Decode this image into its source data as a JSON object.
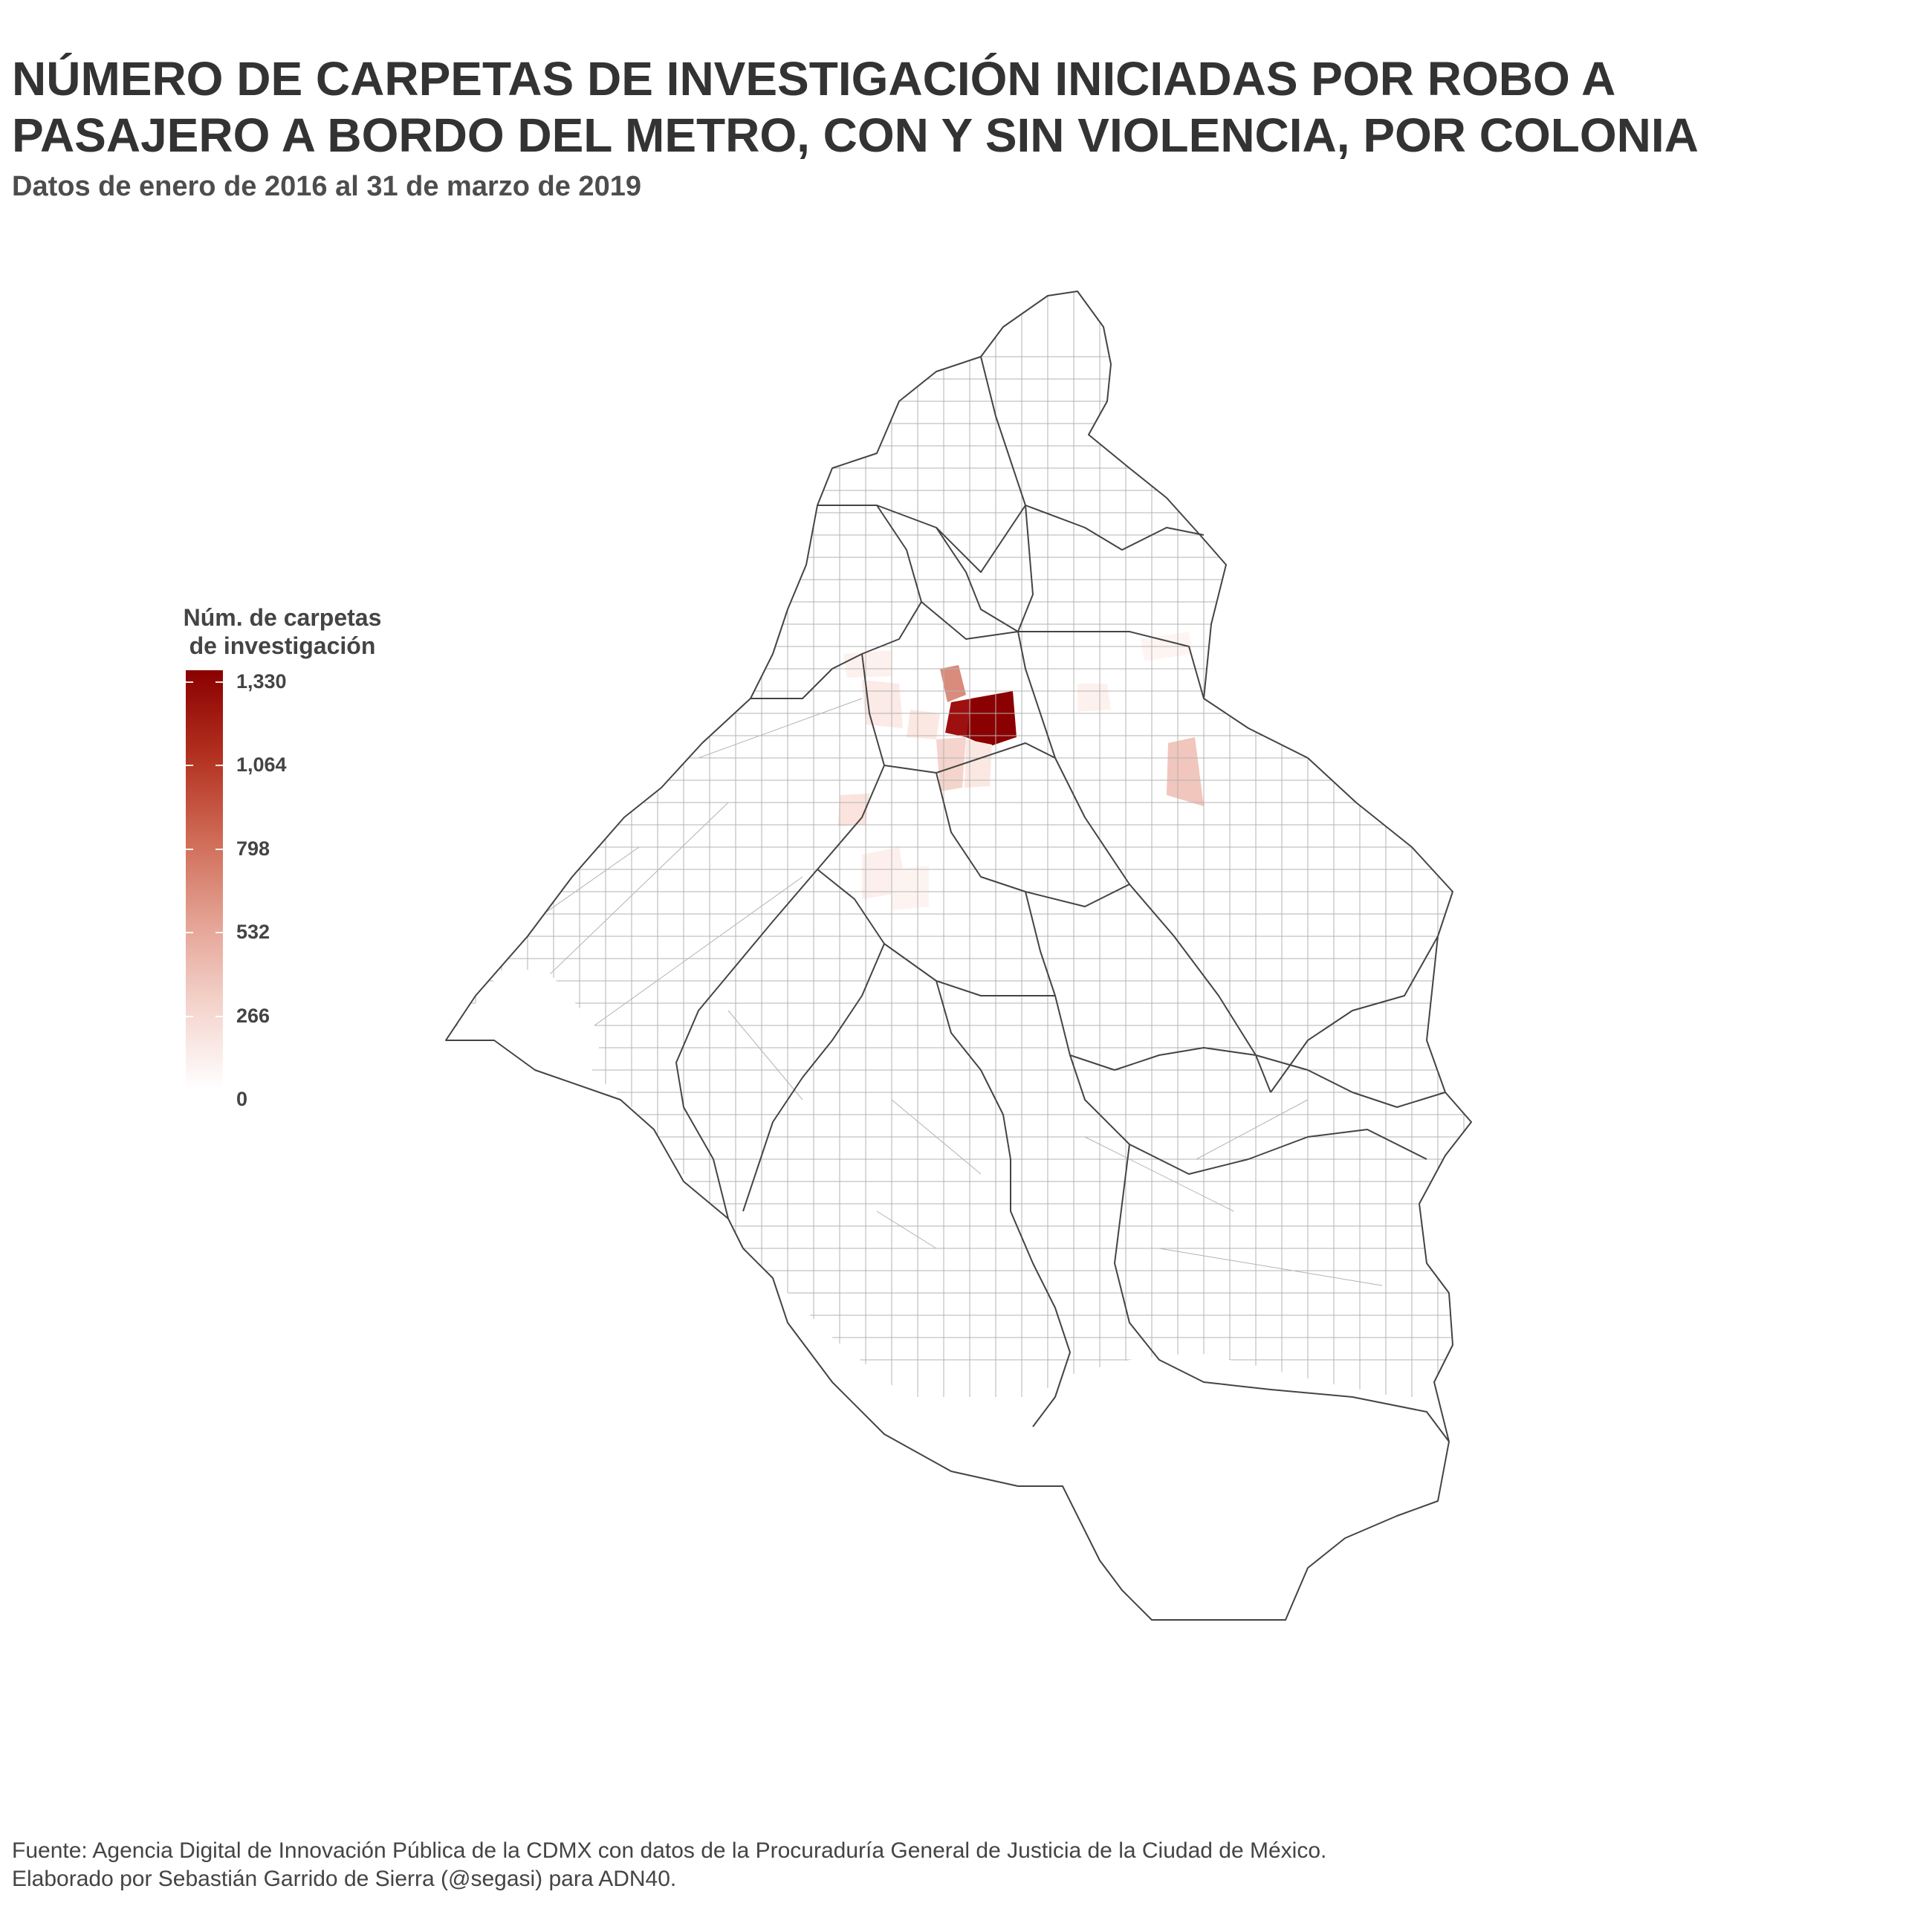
{
  "title_line1": "NÚMERO DE CARPETAS DE INVESTIGACIÓN INICIADAS POR ROBO A",
  "title_line2": "PASAJERO A BORDO DEL METRO, CON Y SIN VIOLENCIA, POR COLONIA",
  "subtitle": "Datos de enero de 2016 al 31 de marzo de 2019",
  "legend": {
    "title_line1": "Núm. de carpetas",
    "title_line2": "de investigación",
    "color_high": "#8b0000",
    "color_low": "#ffffff",
    "ticks": [
      "1,330",
      "1,064",
      "798",
      "532",
      "266",
      "0"
    ],
    "tick_values": [
      1330,
      1064,
      798,
      532,
      266,
      0
    ]
  },
  "caption": {
    "line1": "Fuente: Agencia Digital de Innovación Pública de la CDMX con datos de la Procuraduría General de Justicia de la Ciudad de México.",
    "line2": "Elaborado por Sebastián Garrido de Sierra (@segasi) para ADN40."
  },
  "map": {
    "border_color": "#444444",
    "colonia_line_color": "#b3b3b3",
    "fill_scale": [
      "#ffffff",
      "#f4d4cc",
      "#e4a293",
      "#cf6a55",
      "#b2301f",
      "#8b0000"
    ]
  }
}
